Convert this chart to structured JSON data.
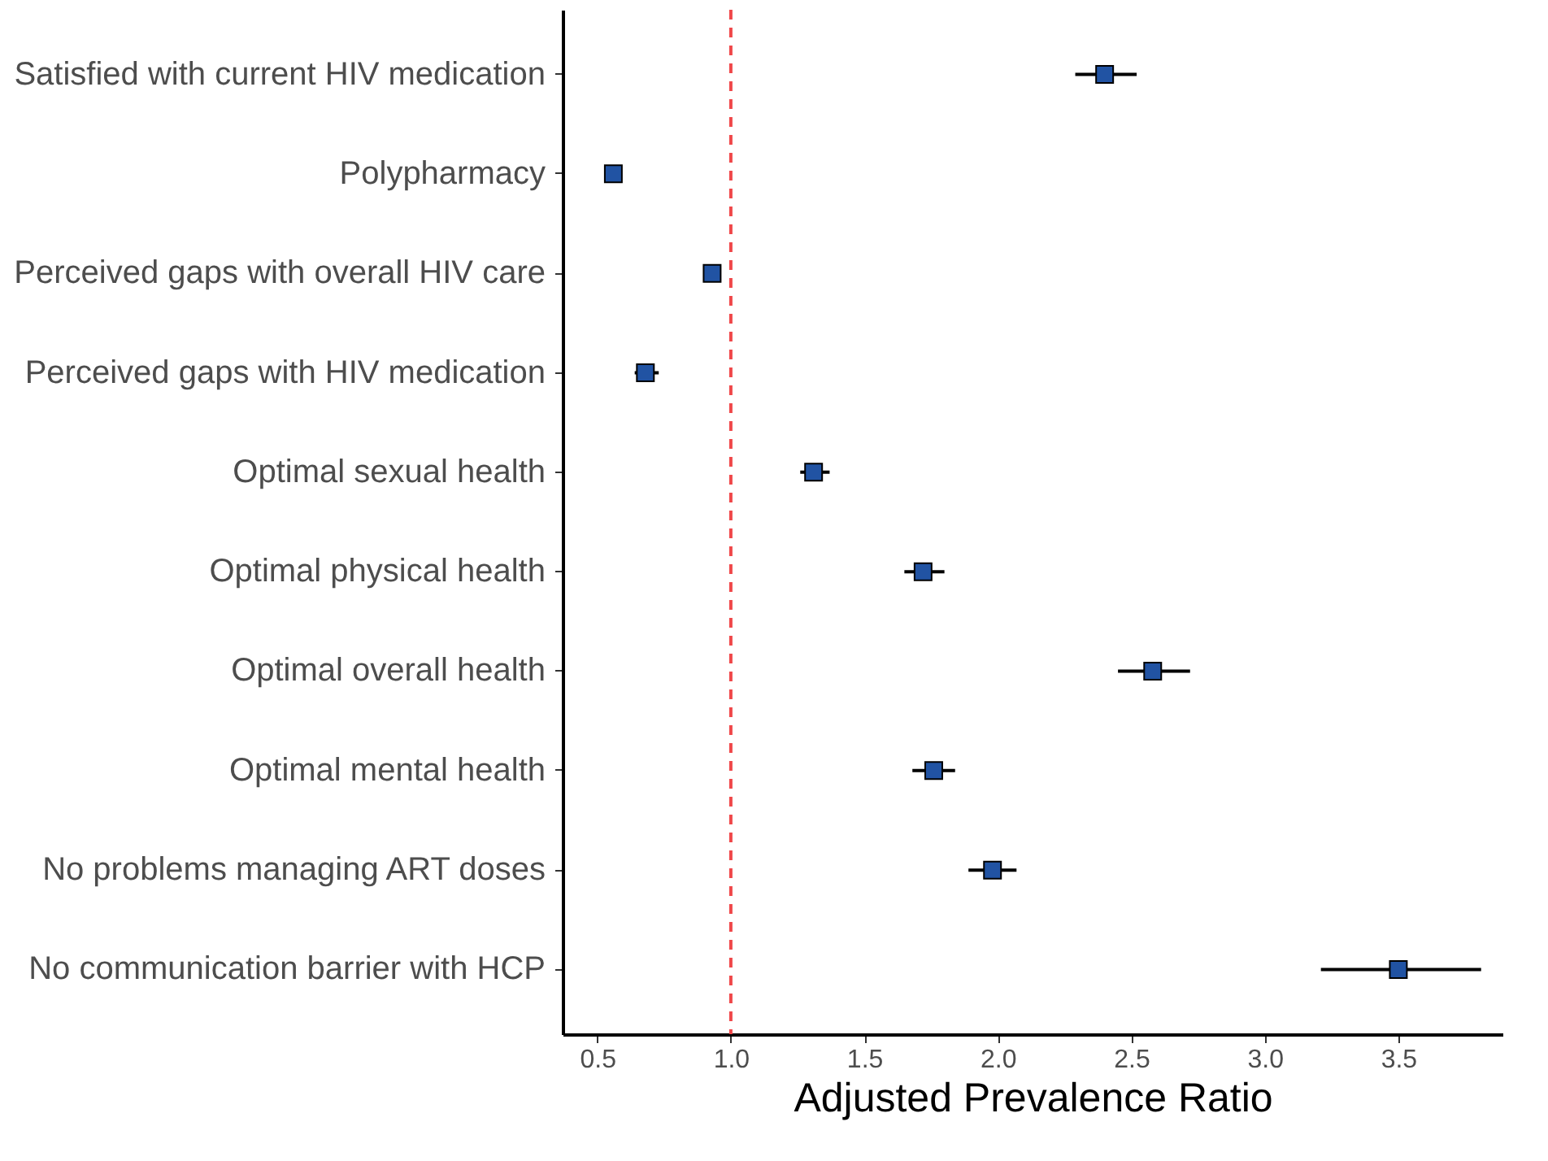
{
  "chart_data": {
    "type": "scatter",
    "orientation": "horizontal",
    "xlabel": "Adjusted Prevalence Ratio",
    "categories": [
      "Satisfied with current HIV medication",
      "Polypharmacy",
      "Perceived gaps with overall HIV care",
      "Perceived gaps with HIV medication",
      "Optimal sexual health",
      "Optimal physical health",
      "Optimal overall health",
      "Optimal mental health",
      "No problems managing ART doses",
      "No communication barrier with HCP"
    ],
    "values": [
      2.4,
      0.56,
      0.93,
      0.68,
      1.31,
      1.72,
      2.58,
      1.76,
      1.98,
      3.5
    ],
    "errors": [
      [
        2.29,
        2.52
      ],
      [
        0.53,
        0.59
      ],
      [
        0.9,
        0.96
      ],
      [
        0.64,
        0.73
      ],
      [
        1.26,
        1.37
      ],
      [
        1.65,
        1.8
      ],
      [
        2.45,
        2.72
      ],
      [
        1.68,
        1.84
      ],
      [
        1.89,
        2.07
      ],
      [
        3.21,
        3.81
      ]
    ],
    "color": "#2153a3",
    "marker": "square",
    "grid": false,
    "xlim": [
      0.37,
      3.89
    ],
    "xticks": [
      0.5,
      {
        "value": 1,
        "label": "1.0"
      },
      1.5,
      {
        "value": 2,
        "label": "2.0"
      },
      2.5,
      {
        "value": 3,
        "label": "3.0"
      },
      3.5
    ],
    "ref_lines": [
      {
        "axis": "x",
        "value": 1.0,
        "color": "#f0484a",
        "line_style": "dashed"
      }
    ]
  }
}
